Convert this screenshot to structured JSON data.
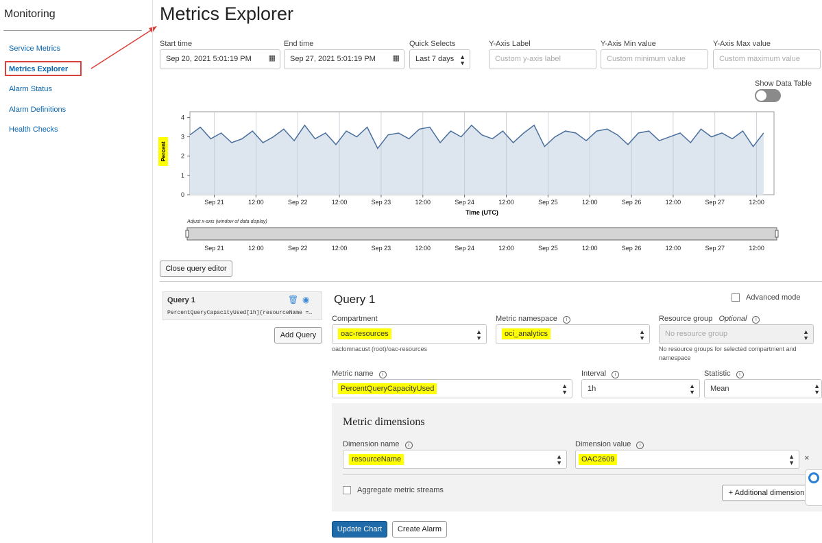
{
  "sidebar": {
    "title": "Monitoring",
    "items": [
      "Service Metrics",
      "Metrics Explorer",
      "Alarm Status",
      "Alarm Definitions",
      "Health Checks"
    ]
  },
  "page_title": "Metrics Explorer",
  "controls": {
    "start_time": {
      "label": "Start time",
      "value": "Sep 20, 2021 5:01:19 PM"
    },
    "end_time": {
      "label": "End time",
      "value": "Sep 27, 2021 5:01:19 PM"
    },
    "quick_selects": {
      "label": "Quick Selects",
      "value": "Last 7 days"
    },
    "y_axis_label": {
      "label": "Y-Axis Label",
      "placeholder": "Custom y-axis label"
    },
    "y_axis_min": {
      "label": "Y-Axis Min value",
      "placeholder": "Custom minimum value"
    },
    "y_axis_max": {
      "label": "Y-Axis Max value",
      "placeholder": "Custom maximum value"
    },
    "show_data_table": "Show Data Table"
  },
  "chart_data": {
    "type": "area",
    "y_label": "Percent",
    "x_label": "Time (UTC)",
    "color": "#4a6f9c",
    "fill": "#dde5ee",
    "grid": true,
    "x": [
      0,
      3,
      6,
      9,
      12,
      15,
      18,
      21,
      24,
      27,
      30,
      33,
      36,
      39,
      42,
      45,
      48,
      51,
      54,
      57,
      60,
      63,
      66,
      69,
      72,
      75,
      78,
      81,
      84,
      87,
      90,
      93,
      96,
      99,
      102,
      105,
      108,
      111,
      114,
      117,
      120,
      123,
      126,
      129,
      132,
      135,
      138,
      141,
      144,
      147,
      150,
      153,
      156,
      159,
      162,
      165
    ],
    "values": [
      3.1,
      3.5,
      2.9,
      3.2,
      2.7,
      2.9,
      3.3,
      2.7,
      3.0,
      3.4,
      2.8,
      3.6,
      2.9,
      3.2,
      2.6,
      3.3,
      3.0,
      3.5,
      2.4,
      3.1,
      3.2,
      2.9,
      3.4,
      3.5,
      2.7,
      3.3,
      3.0,
      3.6,
      3.1,
      2.9,
      3.3,
      2.7,
      3.2,
      3.6,
      2.5,
      3.0,
      3.3,
      3.2,
      2.8,
      3.3,
      3.4,
      3.1,
      2.6,
      3.2,
      3.3,
      2.8,
      3.0,
      3.2,
      2.7,
      3.4,
      3.0,
      3.2,
      2.9,
      3.3,
      2.5,
      3.2
    ],
    "xlim": [
      0,
      168
    ],
    "xticks": [
      {
        "value": 7,
        "label": "Sep 21"
      },
      {
        "value": 19,
        "label": "12:00"
      },
      {
        "value": 31,
        "label": "Sep 22"
      },
      {
        "value": 43,
        "label": "12:00"
      },
      {
        "value": 55,
        "label": "Sep 23"
      },
      {
        "value": 67,
        "label": "12:00"
      },
      {
        "value": 79,
        "label": "Sep 24"
      },
      {
        "value": 91,
        "label": "12:00"
      },
      {
        "value": 103,
        "label": "Sep 25"
      },
      {
        "value": 115,
        "label": "12:00"
      },
      {
        "value": 127,
        "label": "Sep 26"
      },
      {
        "value": 139,
        "label": "12:00"
      },
      {
        "value": 151,
        "label": "Sep 27"
      },
      {
        "value": 163,
        "label": "12:00"
      }
    ],
    "ylim": [
      0,
      4.3
    ],
    "yticks": [
      0,
      1,
      2,
      3,
      4
    ],
    "range_caption": "Adjust x-axis (window of data display)"
  },
  "close_query_editor": "Close query editor",
  "query_list": {
    "name": "Query 1",
    "summary": "PercentQueryCapacityUsed[1h]{resourceName =…",
    "add_query": "Add Query"
  },
  "query": {
    "title": "Query 1",
    "advanced_mode": "Advanced mode",
    "compartment": {
      "label": "Compartment",
      "value": "oac-resources",
      "hint": "oaclomnacust (root)/oac-resources"
    },
    "metric_namespace": {
      "label": "Metric namespace",
      "value": "oci_analytics"
    },
    "resource_group": {
      "label": "Resource group",
      "optional": "Optional",
      "placeholder": "No resource group",
      "hint": "No resource groups for selected compartment and namespace"
    },
    "metric_name": {
      "label": "Metric name",
      "value": "PercentQueryCapacityUsed"
    },
    "interval": {
      "label": "Interval",
      "value": "1h"
    },
    "statistic": {
      "label": "Statistic",
      "value": "Mean"
    },
    "dimensions": {
      "title": "Metric dimensions",
      "name_label": "Dimension name",
      "name_value": "resourceName",
      "value_label": "Dimension value",
      "value_value": "OAC2609",
      "aggregate": "Aggregate metric streams",
      "additional": "Additional dimension"
    }
  },
  "actions": {
    "update": "Update Chart",
    "create_alarm": "Create Alarm"
  }
}
